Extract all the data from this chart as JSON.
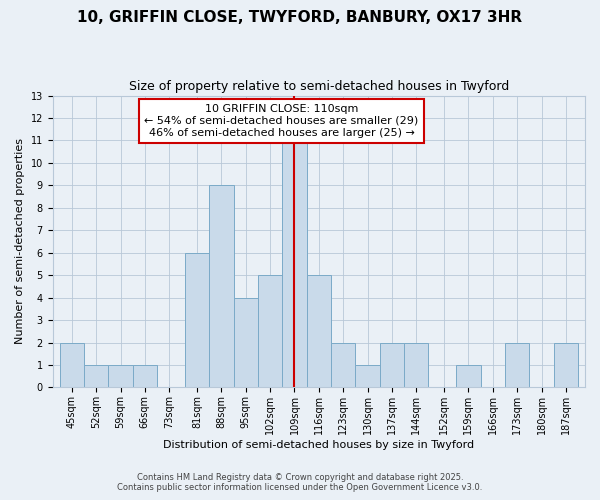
{
  "title": "10, GRIFFIN CLOSE, TWYFORD, BANBURY, OX17 3HR",
  "subtitle": "Size of property relative to semi-detached houses in Twyford",
  "xlabel": "Distribution of semi-detached houses by size in Twyford",
  "ylabel": "Number of semi-detached properties",
  "annotation_title": "10 GRIFFIN CLOSE: 110sqm",
  "annotation_line1": "← 54% of semi-detached houses are smaller (29)",
  "annotation_line2": "46% of semi-detached houses are larger (25) →",
  "marker_value": 109,
  "bar_color": "#c9daea",
  "bar_edge_color": "#7baac8",
  "marker_color": "#cc0000",
  "annotation_box_color": "#cc0000",
  "background_color": "#eaf0f6",
  "grid_color": "#b8c8d8",
  "categories": [
    "45sqm",
    "52sqm",
    "59sqm",
    "66sqm",
    "73sqm",
    "81sqm",
    "88sqm",
    "95sqm",
    "102sqm",
    "109sqm",
    "116sqm",
    "123sqm",
    "130sqm",
    "137sqm",
    "144sqm",
    "152sqm",
    "159sqm",
    "166sqm",
    "173sqm",
    "180sqm",
    "187sqm"
  ],
  "bin_left": [
    45,
    52,
    59,
    66,
    73,
    81,
    88,
    95,
    102,
    109,
    116,
    123,
    130,
    137,
    144,
    152,
    159,
    166,
    173,
    180,
    187
  ],
  "bin_width": 7,
  "values": [
    2,
    1,
    1,
    1,
    0,
    6,
    9,
    4,
    5,
    11,
    5,
    2,
    1,
    2,
    2,
    0,
    1,
    0,
    2,
    0,
    2
  ],
  "ylim": [
    0,
    13
  ],
  "yticks": [
    0,
    1,
    2,
    3,
    4,
    5,
    6,
    7,
    8,
    9,
    10,
    11,
    12,
    13
  ],
  "xlim_left": 43,
  "xlim_right": 196,
  "footnote1": "Contains HM Land Registry data © Crown copyright and database right 2025.",
  "footnote2": "Contains public sector information licensed under the Open Government Licence v3.0.",
  "title_fontsize": 11,
  "subtitle_fontsize": 9,
  "axis_label_fontsize": 8,
  "tick_fontsize": 7,
  "annotation_fontsize": 8,
  "footnote_fontsize": 6
}
